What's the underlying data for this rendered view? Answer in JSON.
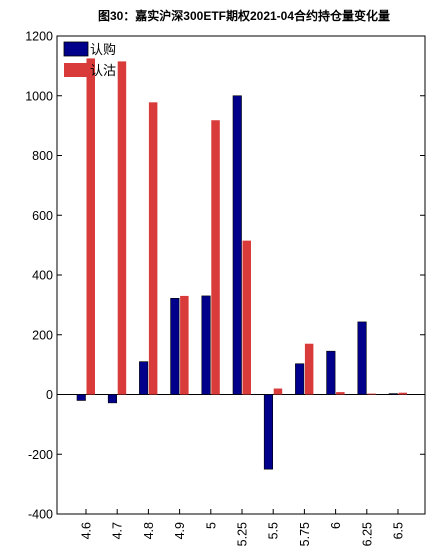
{
  "chart_data": {
    "type": "bar",
    "title": "图30：嘉实沪深300ETF期权2021-04合约持仓量变化量",
    "xlabel": "",
    "ylabel": "",
    "categories": [
      "4.6",
      "4.7",
      "4.8",
      "4.9",
      "5",
      "5.25",
      "5.5",
      "5.75",
      "6",
      "6.25",
      "6.5"
    ],
    "series": [
      {
        "name": "认购",
        "color": "#00008B",
        "values": [
          -20,
          -28,
          110,
          322,
          330,
          1000,
          -250,
          103,
          145,
          243,
          3
        ]
      },
      {
        "name": "认沽",
        "color": "#D93A3A",
        "values": [
          1125,
          1115,
          978,
          330,
          918,
          515,
          20,
          170,
          8,
          3,
          6
        ]
      }
    ],
    "ylim": [
      -400,
      1200
    ],
    "yticks": [
      -400,
      -200,
      0,
      200,
      400,
      600,
      800,
      1000,
      1200
    ],
    "grid": false,
    "legend": "top-left"
  }
}
